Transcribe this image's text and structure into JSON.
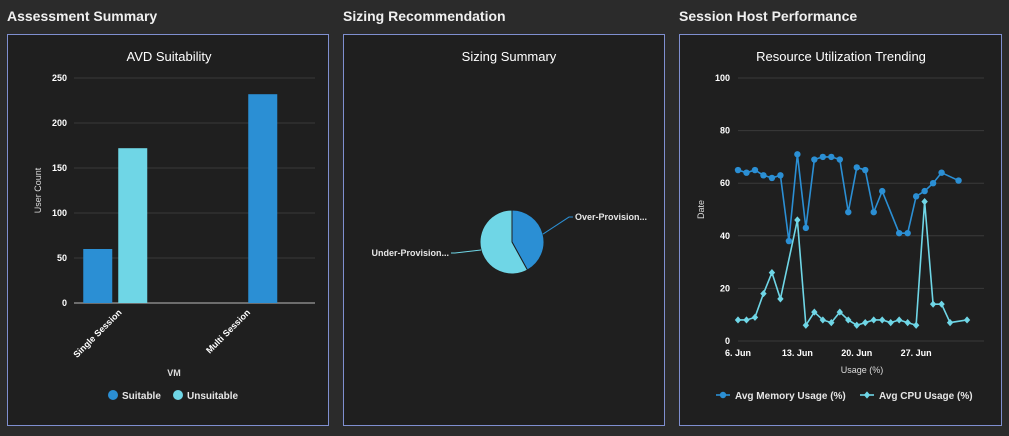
{
  "sections": {
    "assessment": "Assessment Summary",
    "sizing": "Sizing Recommendation",
    "performance": "Session Host Performance"
  },
  "colors": {
    "dark_blue": "#2b8fd4",
    "light_cyan": "#6fd6e6",
    "panel_border": "#7f8fd0"
  },
  "chart_data": [
    {
      "type": "bar",
      "title": "AVD Suitability",
      "xlabel": "VM",
      "ylabel": "User Count",
      "ylim": [
        0,
        250
      ],
      "yticks": [
        0,
        50,
        100,
        150,
        200,
        250
      ],
      "categories": [
        "Single Session",
        "Multi Session"
      ],
      "series": [
        {
          "name": "Suitable",
          "values": [
            60,
            232
          ],
          "color": "#2b8fd4"
        },
        {
          "name": "Unsuitable",
          "values": [
            172,
            0
          ],
          "color": "#6fd6e6"
        }
      ],
      "legend": "bottom",
      "grid": true
    },
    {
      "type": "pie",
      "title": "Sizing Summary",
      "slices": [
        {
          "label": "Over-Provision...",
          "value": 42,
          "color": "#2b8fd4"
        },
        {
          "label": "Under-Provision...",
          "value": 58,
          "color": "#6fd6e6"
        }
      ]
    },
    {
      "type": "line",
      "title": "Resource Utilization Trending",
      "xlabel": "Usage (%)",
      "ylabel": "Date",
      "ylim": [
        0,
        100
      ],
      "yticks": [
        0,
        20,
        40,
        60,
        80,
        100
      ],
      "xticks": [
        {
          "label": "6. Jun",
          "day": 6
        },
        {
          "label": "13. Jun",
          "day": 13
        },
        {
          "label": "20. Jun",
          "day": 20
        },
        {
          "label": "27. Jun",
          "day": 27
        }
      ],
      "xrange": [
        6,
        35
      ],
      "x": [
        6,
        7,
        8,
        9,
        10,
        11,
        12,
        13,
        14,
        15,
        16,
        17,
        18,
        19,
        20,
        21,
        22,
        23,
        24,
        25,
        26,
        27,
        28,
        29,
        30,
        31,
        32,
        33,
        34,
        35
      ],
      "series": [
        {
          "name": "Avg Memory Usage (%)",
          "color": "#2b8fd4",
          "marker": "circle",
          "values": [
            65,
            64,
            65,
            63,
            62,
            63,
            38,
            71,
            43,
            69,
            70,
            70,
            69,
            49,
            66,
            65,
            49,
            57,
            null,
            41,
            41,
            55,
            57,
            60,
            64,
            null,
            61,
            null,
            null,
            null
          ]
        },
        {
          "name": "Avg CPU Usage (%)",
          "color": "#6fd6e6",
          "marker": "diamond",
          "values": [
            8,
            8,
            9,
            18,
            26,
            16,
            null,
            46,
            6,
            11,
            8,
            7,
            11,
            8,
            6,
            7,
            8,
            8,
            7,
            8,
            7,
            6,
            53,
            14,
            14,
            7,
            null,
            8,
            null,
            null
          ]
        }
      ],
      "legend": "bottom",
      "grid": true
    }
  ]
}
